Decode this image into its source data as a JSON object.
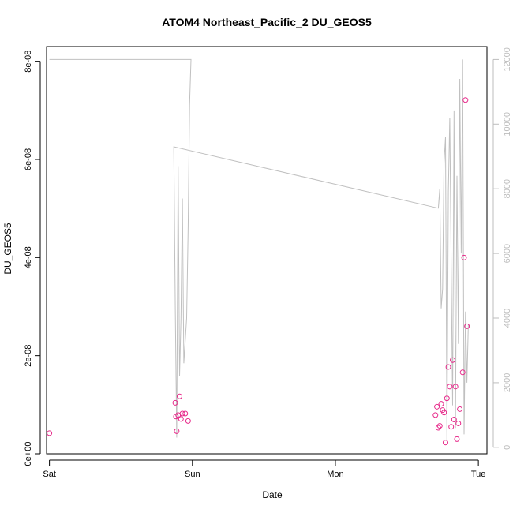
{
  "chart_data": {
    "type": "scatter",
    "title": "ATOM4 Northeast_Pacific_2 DU_GEOS5",
    "xlabel": "Date",
    "ylabel": "DU_GEOS5",
    "x_ticks": [
      {
        "label": "Sat",
        "value": 0
      },
      {
        "label": "Sun",
        "value": 1
      },
      {
        "label": "Mon",
        "value": 2
      },
      {
        "label": "Tue",
        "value": 3
      }
    ],
    "xlim": [
      -0.02,
      3.06
    ],
    "y_left": {
      "ylim": [
        0,
        8.3e-08
      ],
      "ticks": [
        {
          "label": "0e+00",
          "value": 0
        },
        {
          "label": "2e-08",
          "value": 2e-08
        },
        {
          "label": "4e-08",
          "value": 4e-08
        },
        {
          "label": "6e-08",
          "value": 6e-08
        },
        {
          "label": "8e-08",
          "value": 8e-08
        }
      ]
    },
    "y_right": {
      "ylim": [
        -200,
        12400
      ],
      "color": "#bdbdbd",
      "ticks": [
        {
          "label": "0",
          "value": 0
        },
        {
          "label": "2000",
          "value": 2000
        },
        {
          "label": "4000",
          "value": 4000
        },
        {
          "label": "6000",
          "value": 6000
        },
        {
          "label": "8000",
          "value": 8000
        },
        {
          "label": "10000",
          "value": 10000
        },
        {
          "label": "12000",
          "value": 12000
        }
      ]
    },
    "series": [
      {
        "kind": "points",
        "axis": "left",
        "color": "#e7298a",
        "x": [
          0.0,
          0.88,
          0.885,
          0.89,
          0.9,
          0.91,
          0.92,
          0.93,
          0.95,
          0.97,
          2.7,
          2.71,
          2.72,
          2.73,
          2.74,
          2.75,
          2.76,
          2.77,
          2.78,
          2.79,
          2.8,
          2.81,
          2.82,
          2.83,
          2.84,
          2.85,
          2.86,
          2.87,
          2.89,
          2.9,
          2.91,
          2.92
        ],
        "y": [
          4.2e-09,
          1.04e-08,
          7.6e-09,
          4.6e-09,
          7.9e-09,
          1.17e-08,
          7.1e-09,
          8.2e-09,
          8.2e-09,
          6.7e-09,
          7.9e-09,
          9.6e-09,
          5.3e-09,
          5.7e-09,
          1.02e-08,
          8.9e-09,
          8.4e-09,
          2.3e-09,
          1.13e-08,
          1.77e-08,
          1.37e-08,
          5.5e-09,
          1.91e-08,
          7e-09,
          1.37e-08,
          3e-09,
          6.2e-09,
          9.1e-09,
          1.66e-08,
          4e-08,
          7.21e-08,
          2.6e-08
        ]
      },
      {
        "kind": "line",
        "axis": "right",
        "color": "#c0c0c0",
        "x": [
          0.0,
          0.99,
          0.98,
          0.97,
          0.96,
          0.94,
          0.93,
          0.92,
          0.91,
          0.9,
          0.89,
          0.88,
          0.87,
          2.72,
          2.73,
          2.74,
          2.75,
          2.76,
          2.77,
          2.78,
          2.79,
          2.8,
          2.81,
          2.82,
          2.83,
          2.84,
          2.85,
          2.86,
          2.87,
          2.88,
          2.89,
          2.9,
          2.91,
          2.92,
          2.93
        ],
        "y": [
          12000,
          12000,
          10600,
          6800,
          4000,
          2600,
          7700,
          4000,
          2200,
          8700,
          300,
          4300,
          9300,
          7400,
          8000,
          4300,
          4900,
          8800,
          9600,
          200,
          7900,
          10200,
          5600,
          1300,
          10400,
          600,
          8400,
          3200,
          11400,
          6000,
          12000,
          400,
          4200,
          2000,
          3800
        ]
      }
    ]
  }
}
